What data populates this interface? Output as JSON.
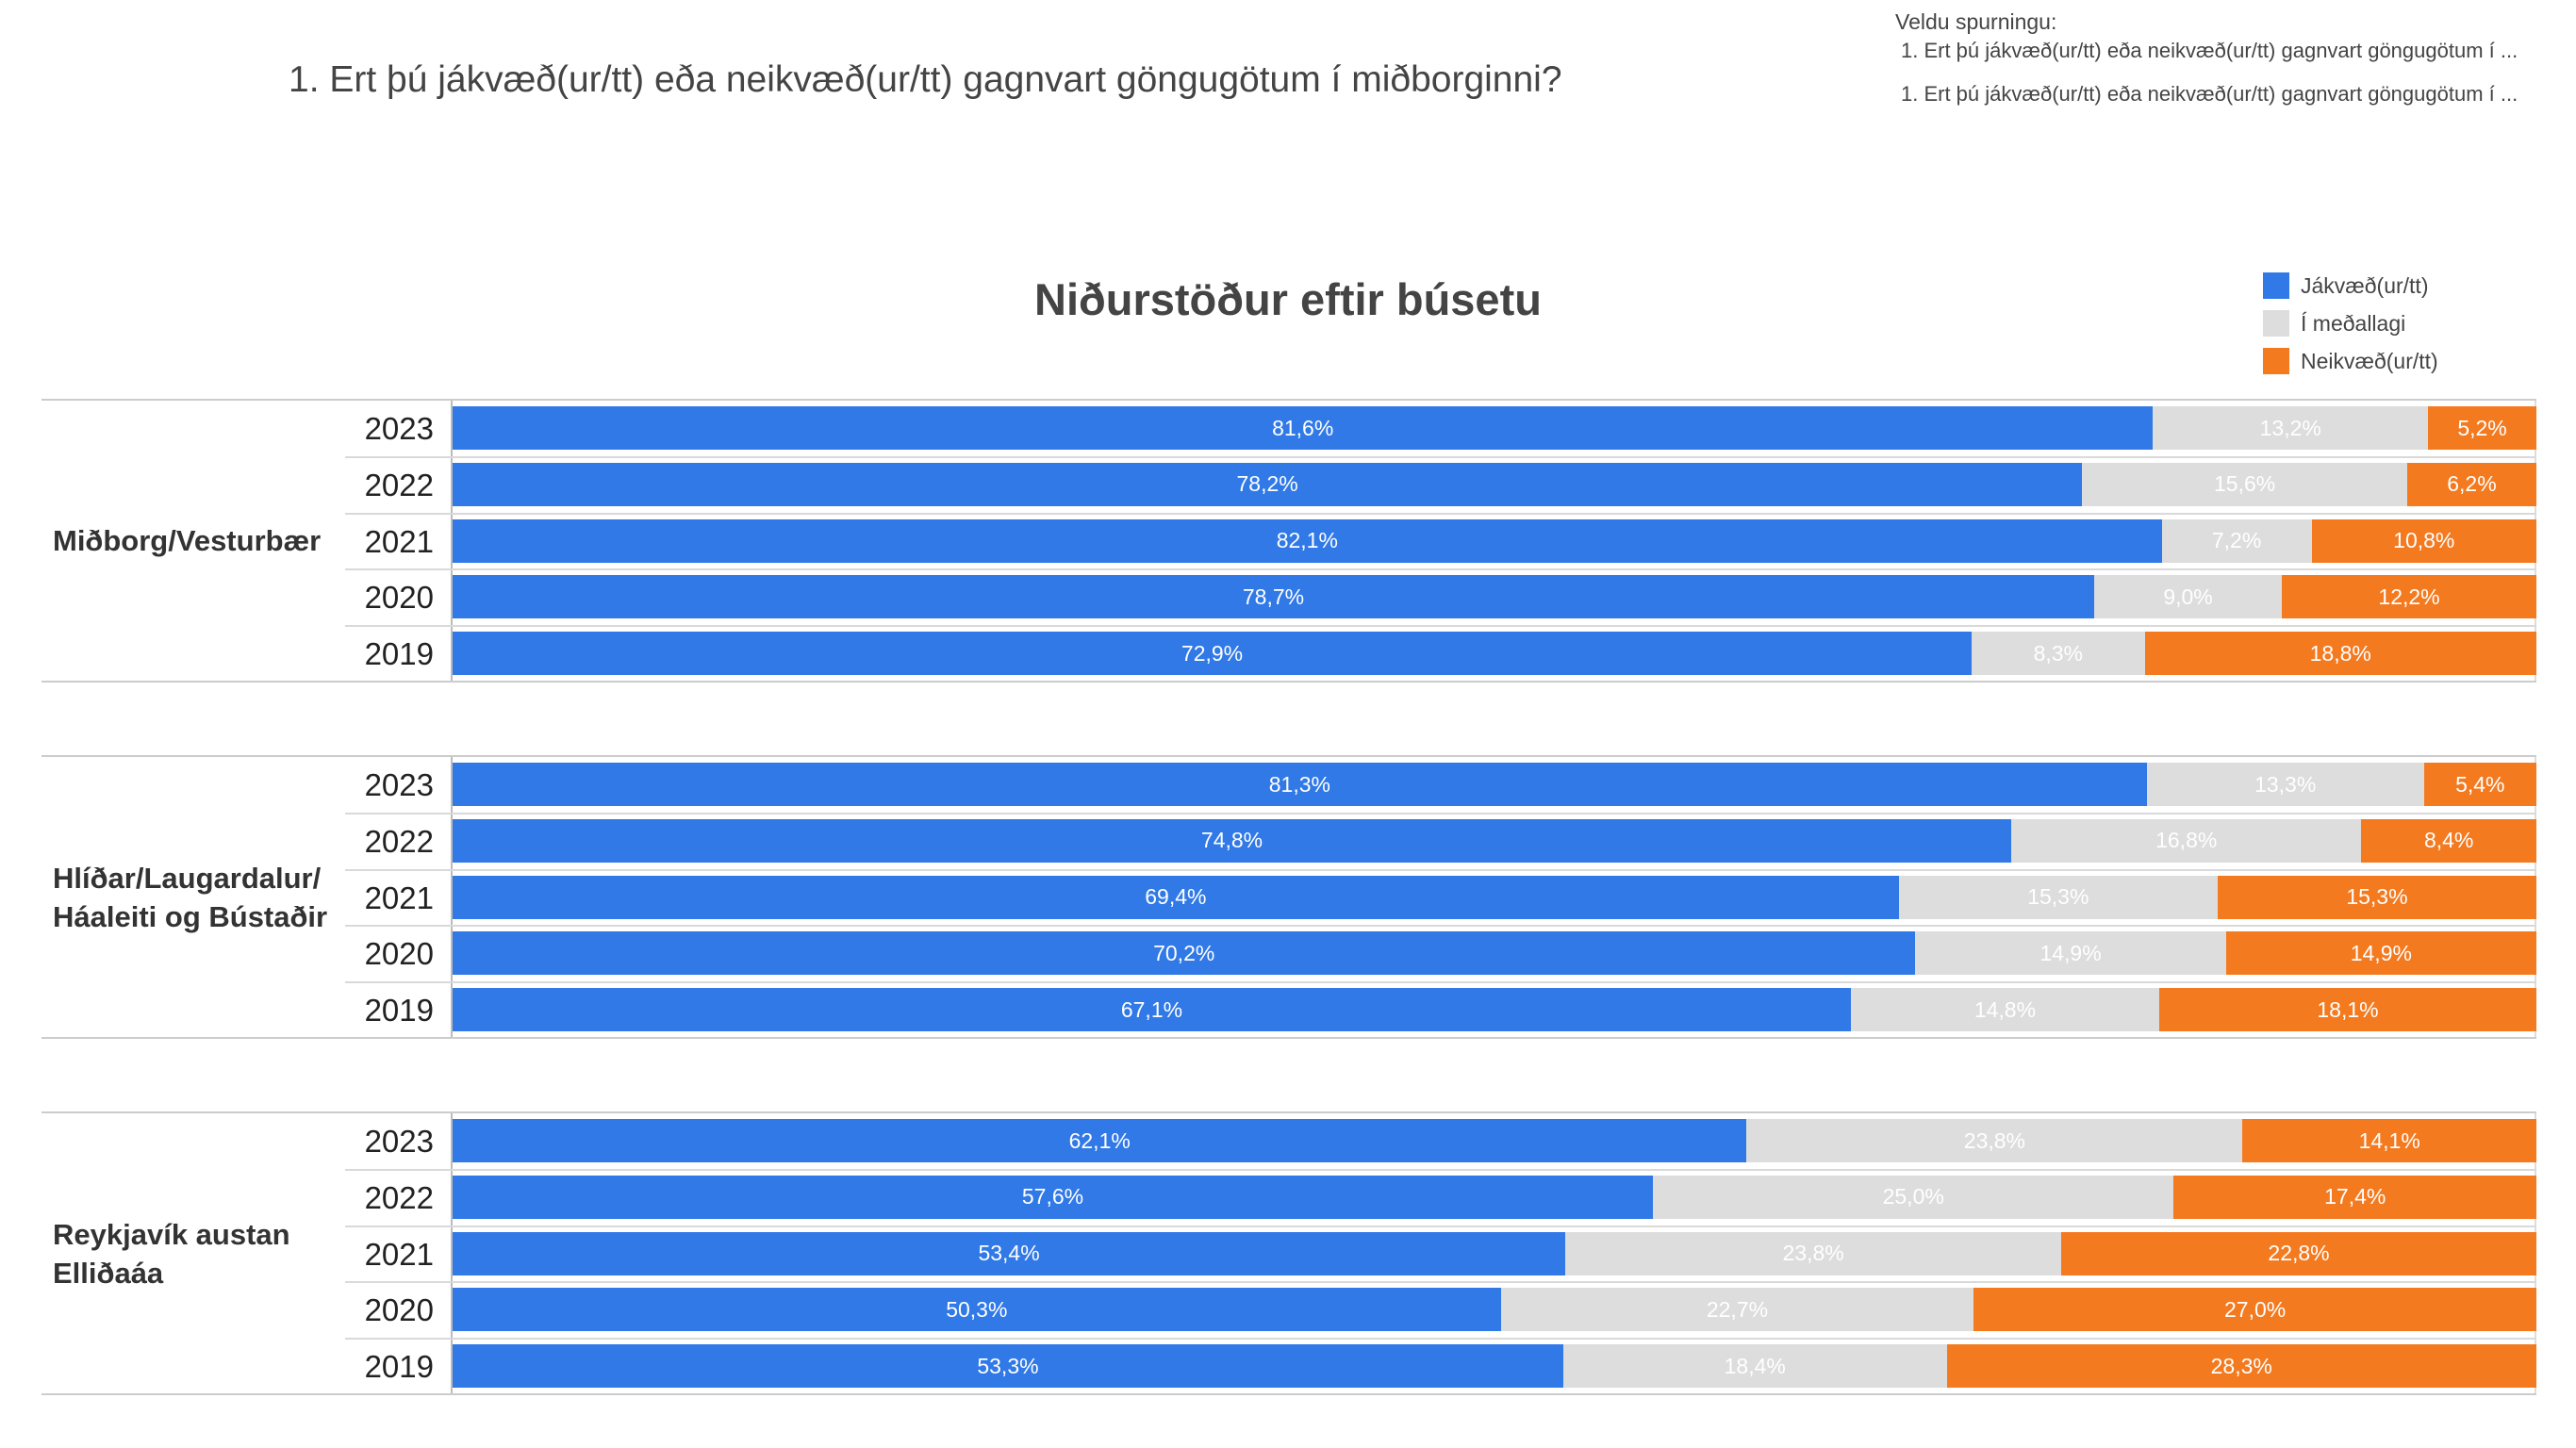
{
  "question_title": "1. Ert þú jákvæð(ur/tt) eða neikvæð(ur/tt) gagnvart göngugötum í miðborginni?",
  "selector": {
    "label": "Veldu spurningu:",
    "options": [
      "1. Ert þú jákvæð(ur/tt) eða neikvæð(ur/tt) gagnvart göngugötum í ...",
      "1. Ert þú jákvæð(ur/tt) eða neikvæð(ur/tt) gagnvart göngugötum í ..."
    ]
  },
  "colors": {
    "jakvaed": "#3079e7",
    "medallagi": "#dddddd",
    "neikvaed": "#f47a20"
  },
  "chart_data": {
    "type": "bar",
    "orientation": "horizontal",
    "stacked": true,
    "normalized_to_percent": true,
    "title": "Niðurstöður eftir búsetu",
    "legend": {
      "placement": "top-right",
      "items": [
        "Jákvæð(ur/tt)",
        "Í meðallagi",
        "Neikvæð(ur/tt)"
      ]
    },
    "series_names": [
      "Jákvæð(ur/tt)",
      "Í meðallagi",
      "Neikvæð(ur/tt)"
    ],
    "groups": [
      {
        "name": "Miðborg/Vesturbær",
        "rows": [
          {
            "year": "2023",
            "values": [
              81.6,
              13.2,
              5.2
            ],
            "labels": [
              "81,6%",
              "13,2%",
              "5,2%"
            ]
          },
          {
            "year": "2022",
            "values": [
              78.2,
              15.6,
              6.2
            ],
            "labels": [
              "78,2%",
              "15,6%",
              "6,2%"
            ]
          },
          {
            "year": "2021",
            "values": [
              82.1,
              7.2,
              10.8
            ],
            "labels": [
              "82,1%",
              "7,2%",
              "10,8%"
            ]
          },
          {
            "year": "2020",
            "values": [
              78.7,
              9.0,
              12.2
            ],
            "labels": [
              "78,7%",
              "9,0%",
              "12,2%"
            ]
          },
          {
            "year": "2019",
            "values": [
              72.9,
              8.3,
              18.8
            ],
            "labels": [
              "72,9%",
              "8,3%",
              "18,8%"
            ]
          }
        ]
      },
      {
        "name": "Hlíðar/Laugardalur/\nHáaleiti og Bústaðir",
        "rows": [
          {
            "year": "2023",
            "values": [
              81.3,
              13.3,
              5.4
            ],
            "labels": [
              "81,3%",
              "13,3%",
              "5,4%"
            ]
          },
          {
            "year": "2022",
            "values": [
              74.8,
              16.8,
              8.4
            ],
            "labels": [
              "74,8%",
              "16,8%",
              "8,4%"
            ]
          },
          {
            "year": "2021",
            "values": [
              69.4,
              15.3,
              15.3
            ],
            "labels": [
              "69,4%",
              "15,3%",
              "15,3%"
            ]
          },
          {
            "year": "2020",
            "values": [
              70.2,
              14.9,
              14.9
            ],
            "labels": [
              "70,2%",
              "14,9%",
              "14,9%"
            ]
          },
          {
            "year": "2019",
            "values": [
              67.1,
              14.8,
              18.1
            ],
            "labels": [
              "67,1%",
              "14,8%",
              "18,1%"
            ]
          }
        ]
      },
      {
        "name": "Reykjavík austan\nElliðaáa",
        "rows": [
          {
            "year": "2023",
            "values": [
              62.1,
              23.8,
              14.1
            ],
            "labels": [
              "62,1%",
              "23,8%",
              "14,1%"
            ]
          },
          {
            "year": "2022",
            "values": [
              57.6,
              25.0,
              17.4
            ],
            "labels": [
              "57,6%",
              "25,0%",
              "17,4%"
            ]
          },
          {
            "year": "2021",
            "values": [
              53.4,
              23.8,
              22.8
            ],
            "labels": [
              "53,4%",
              "23,8%",
              "22,8%"
            ]
          },
          {
            "year": "2020",
            "values": [
              50.3,
              22.7,
              27.0
            ],
            "labels": [
              "50,3%",
              "22,7%",
              "27,0%"
            ]
          },
          {
            "year": "2019",
            "values": [
              53.3,
              18.4,
              28.3
            ],
            "labels": [
              "53,3%",
              "18,4%",
              "28,3%"
            ]
          }
        ]
      }
    ]
  }
}
